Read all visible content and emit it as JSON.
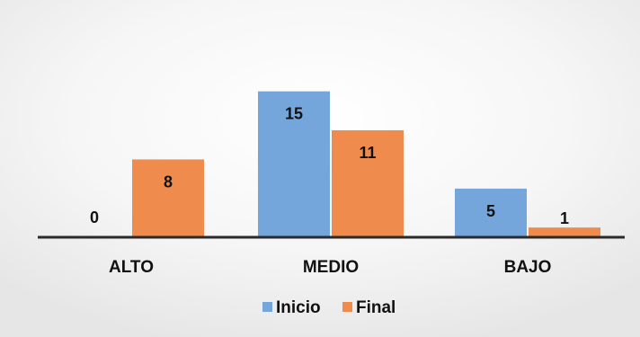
{
  "colors": {
    "background": "#e8e8e8",
    "plot_background": "#ffffff",
    "inicio": "#74a6dc",
    "final": "#ef8c4d",
    "axis": "#2a2a2a"
  },
  "chart_data": {
    "type": "bar",
    "categories": [
      "ALTO",
      "MEDIO",
      "BAJO"
    ],
    "series": [
      {
        "name": "Inicio",
        "values": [
          0,
          15,
          5
        ]
      },
      {
        "name": "Final",
        "values": [
          8,
          11,
          1
        ]
      }
    ],
    "ylim": [
      0,
      17
    ],
    "grid": false,
    "legend_position": "bottom"
  }
}
